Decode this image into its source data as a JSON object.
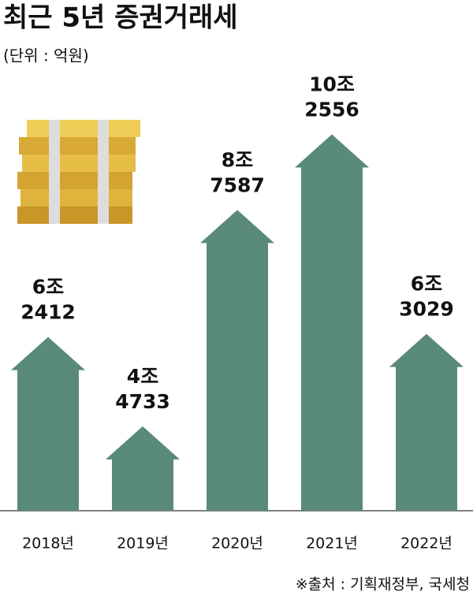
{
  "chart_data": {
    "type": "arrow-bar",
    "title": "최근 5년 증권거래세",
    "subtitle": "(단위 : 억원)",
    "categories": [
      "2018년",
      "2019년",
      "2020년",
      "2021년",
      "2022년"
    ],
    "values": [
      62412,
      44733,
      87587,
      102556,
      63029
    ],
    "value_labels": [
      [
        "6조",
        "2412"
      ],
      [
        "4조",
        "4733"
      ],
      [
        "8조",
        "7587"
      ],
      [
        "10조",
        "2556"
      ],
      [
        "6조",
        "3029"
      ]
    ],
    "color": "#5a8a78",
    "ylim": [
      28000,
      112000
    ],
    "source": "※출처 : 기획재정부, 국세청"
  }
}
